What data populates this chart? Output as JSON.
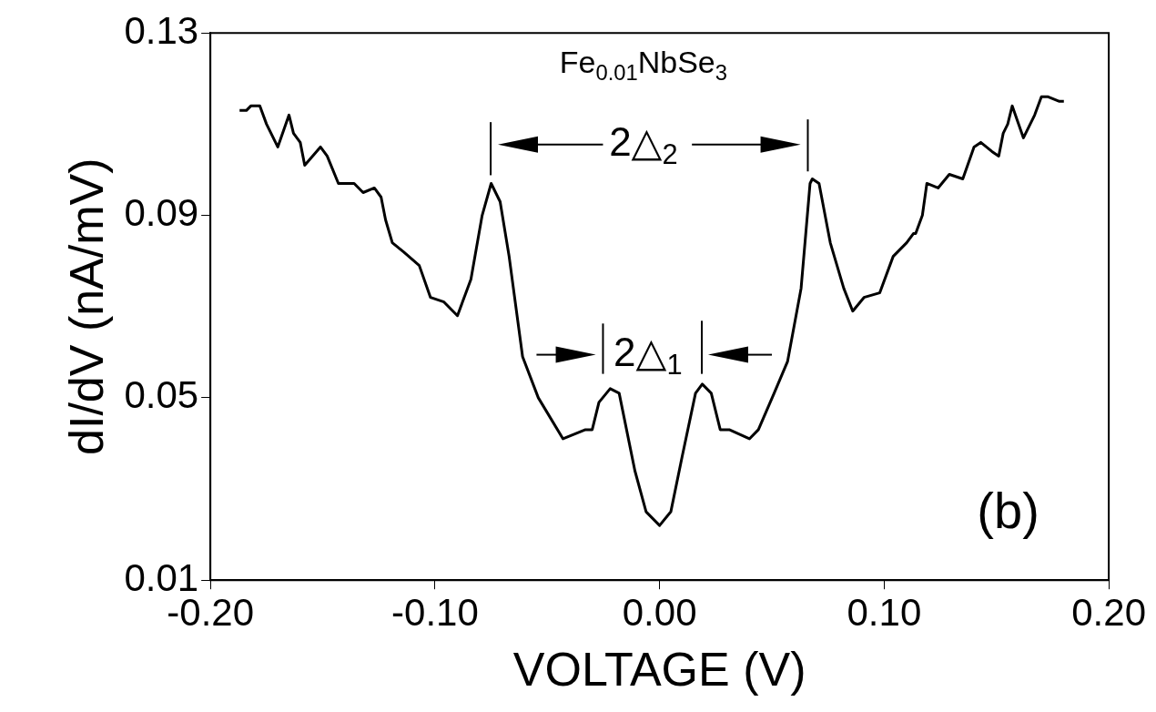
{
  "chart_data": {
    "type": "line",
    "xlabel": "VOLTAGE (V)",
    "ylabel": "dI/dV (nA/mV)",
    "x": [
      -0.187,
      -0.184,
      -0.182,
      -0.178,
      -0.175,
      -0.17,
      -0.165,
      -0.163,
      -0.16,
      -0.158,
      -0.151,
      -0.148,
      -0.143,
      -0.136,
      -0.132,
      -0.127,
      -0.124,
      -0.122,
      -0.119,
      -0.114,
      -0.107,
      -0.102,
      -0.096,
      -0.09,
      -0.084,
      -0.079,
      -0.075,
      -0.071,
      -0.067,
      -0.061,
      -0.054,
      -0.043,
      -0.033,
      -0.03,
      -0.027,
      -0.022,
      -0.018,
      -0.011,
      -0.006,
      0.0,
      0.005,
      0.01,
      0.016,
      0.019,
      0.023,
      0.027,
      0.031,
      0.04,
      0.044,
      0.051,
      0.057,
      0.063,
      0.067,
      0.068,
      0.071,
      0.076,
      0.082,
      0.086,
      0.091,
      0.098,
      0.104,
      0.108,
      0.11,
      0.113,
      0.114,
      0.117,
      0.119,
      0.124,
      0.129,
      0.135,
      0.14,
      0.143,
      0.148,
      0.151,
      0.153,
      0.155,
      0.157,
      0.162,
      0.167,
      0.17,
      0.173,
      0.178,
      0.18
    ],
    "series": [
      {
        "color": "#000000",
        "values": [
          0.113,
          0.113,
          0.114,
          0.114,
          0.11,
          0.105,
          0.112,
          0.108,
          0.106,
          0.101,
          0.105,
          0.103,
          0.097,
          0.097,
          0.095,
          0.096,
          0.094,
          0.089,
          0.084,
          0.082,
          0.079,
          0.072,
          0.071,
          0.068,
          0.076,
          0.09,
          0.097,
          0.093,
          0.081,
          0.059,
          0.05,
          0.041,
          0.043,
          0.043,
          0.049,
          0.052,
          0.051,
          0.034,
          0.025,
          0.022,
          0.025,
          0.037,
          0.051,
          0.053,
          0.051,
          0.043,
          0.043,
          0.041,
          0.043,
          0.051,
          0.058,
          0.074,
          0.097,
          0.098,
          0.097,
          0.084,
          0.074,
          0.069,
          0.072,
          0.073,
          0.081,
          0.083,
          0.084,
          0.086,
          0.086,
          0.09,
          0.097,
          0.096,
          0.099,
          0.098,
          0.105,
          0.106,
          0.104,
          0.103,
          0.108,
          0.11,
          0.114,
          0.107,
          0.112,
          0.116,
          0.116,
          0.115,
          0.115
        ]
      }
    ],
    "xlim": [
      -0.2,
      0.2
    ],
    "xticks": [
      {
        "value": -0.2,
        "label": "-0.20"
      },
      {
        "value": -0.1,
        "label": "-0.10"
      },
      {
        "value": 0,
        "label": "0.00"
      },
      {
        "value": 0.1,
        "label": "0.10"
      },
      {
        "value": 0.2,
        "label": "0.20"
      }
    ],
    "ylim": [
      0.01,
      0.13
    ],
    "yticks": [
      0.01,
      0.05,
      0.09,
      0.13
    ],
    "annotations": [
      "Fe$_{0.01}$NbSe$_{3}$",
      "(b)",
      "2△$_{2}$",
      "2△$_{1}$"
    ],
    "grid": false,
    "legend": false,
    "marker": "none",
    "line_style": "solid"
  }
}
